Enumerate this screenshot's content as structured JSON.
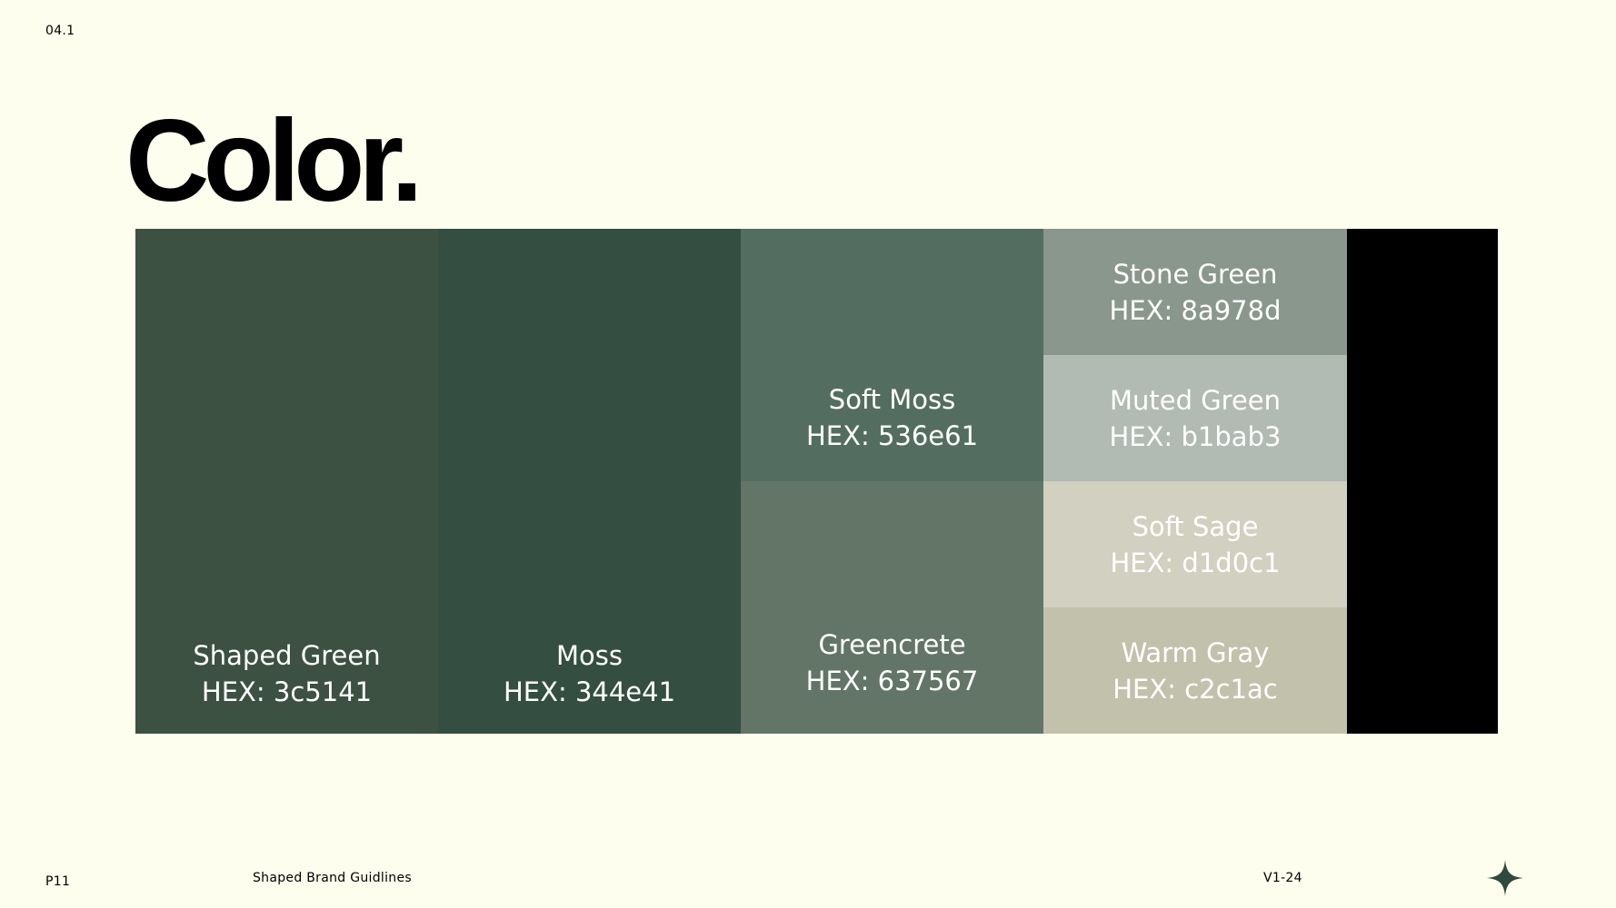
{
  "header": {
    "section_number": "04.1"
  },
  "title": "Color.",
  "palette": {
    "swatches": [
      {
        "name": "Shaped Green",
        "hex_label": "HEX: 3c5141",
        "color": "#3c5141"
      },
      {
        "name": "Moss",
        "hex_label": "HEX: 344e41",
        "color": "#344e41"
      },
      {
        "name": "Soft Moss",
        "hex_label": "HEX: 536e61",
        "color": "#536e61"
      },
      {
        "name": "Greencrete",
        "hex_label": "HEX: 637567",
        "color": "#637567"
      },
      {
        "name": "Stone Green",
        "hex_label": "HEX: 8a978d",
        "color": "#8a978d"
      },
      {
        "name": "Muted Green",
        "hex_label": "HEX: b1bab3",
        "color": "#b1bab3"
      },
      {
        "name": "Soft Sage",
        "hex_label": "HEX: d1d0c1",
        "color": "#d1d0c1"
      },
      {
        "name": "Warm Gray",
        "hex_label": "HEX: c2c1ac",
        "color": "#c2c1ac"
      },
      {
        "name": "",
        "hex_label": "",
        "color": "#000000"
      }
    ]
  },
  "footer": {
    "page_number": "P11",
    "document_title": "Shaped Brand Guidlines",
    "version": "V1-24",
    "icon": "four-point-star-icon",
    "icon_color": "#2f4a3c"
  },
  "colors": {
    "background": "#fdfeee",
    "text": "#000000",
    "swatch_text": "#ffffff"
  }
}
